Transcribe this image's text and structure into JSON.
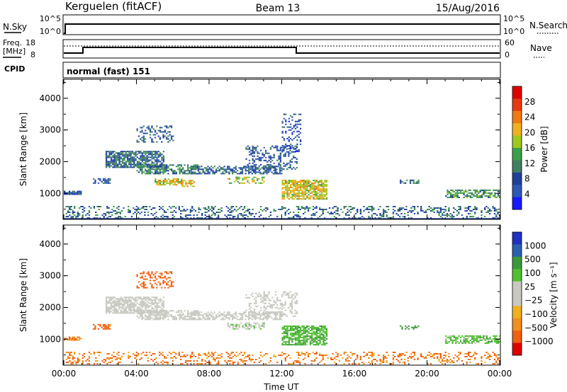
{
  "header": {
    "station": "Kerguelen (fitACF)",
    "beam": "Beam 13",
    "date": "15/Aug/2016"
  },
  "top_panels": {
    "nsky": {
      "label": "N.Sky",
      "ticks": [
        "10^5",
        "10^0"
      ],
      "right_label": "N.Search",
      "right_ticks": [
        "10^5",
        "10^0"
      ]
    },
    "freq": {
      "label_top": "Freq.",
      "label_unit": "[MHz]",
      "ticks": [
        "18",
        "8"
      ],
      "right_label": "Nave",
      "right_ticks": [
        "60",
        "0"
      ]
    },
    "cpid": {
      "label": "CPID",
      "value": "normal (fast) 151"
    }
  },
  "colors": {
    "power_scale": [
      "#1a1aff",
      "#2e58b8",
      "#1f3f9a",
      "#3f7f5f",
      "#3ca04a",
      "#9ec81e",
      "#f0b020",
      "#f07a10",
      "#e83a10",
      "#e00000"
    ],
    "velocity_scale": [
      "#e00000",
      "#f06010",
      "#f09020",
      "#f0b020",
      "#c8c8c0",
      "#c8c8c0",
      "#50c030",
      "#3a9a3a",
      "#2a60b0",
      "#2030c0"
    ]
  },
  "chart_data": [
    {
      "type": "heatmap",
      "title": "",
      "xlabel": "",
      "ylabel": "Slant Range [km]",
      "x_ticks": [
        "00:00",
        "04:00",
        "08:00",
        "12:00",
        "16:00",
        "20:00",
        "00:00"
      ],
      "y_ticks": [
        "1000",
        "2000",
        "3000",
        "4000"
      ],
      "xlim_hours": [
        0,
        24
      ],
      "ylim_km": [
        180,
        4600
      ],
      "colorbar": {
        "label": "Power [dB]",
        "ticks": [
          "4",
          "8",
          "12",
          "16",
          "20",
          "24",
          "28"
        ],
        "range": [
          0,
          30
        ]
      },
      "regions": [
        {
          "t0": 0.1,
          "t1": 24.0,
          "r0": 200,
          "r1": 600,
          "value": 9,
          "density": 0.28
        },
        {
          "t0": 0.0,
          "t1": 0.9,
          "r0": 950,
          "r1": 1080,
          "value": 6,
          "density": 0.7
        },
        {
          "t0": 1.6,
          "t1": 2.5,
          "r0": 1300,
          "r1": 1450,
          "value": 7,
          "density": 0.6
        },
        {
          "t0": 2.3,
          "t1": 5.5,
          "r0": 1800,
          "r1": 2300,
          "value": 9,
          "density": 0.75
        },
        {
          "t0": 4.0,
          "t1": 7.5,
          "r0": 1600,
          "r1": 1900,
          "value": 11,
          "density": 0.65
        },
        {
          "t0": 4.0,
          "t1": 6.0,
          "r0": 2600,
          "r1": 3100,
          "value": 8,
          "density": 0.3
        },
        {
          "t0": 7.0,
          "t1": 12.0,
          "r0": 1600,
          "r1": 1850,
          "value": 8,
          "density": 0.6
        },
        {
          "t0": 5.0,
          "t1": 6.5,
          "r0": 1250,
          "r1": 1450,
          "value": 18,
          "density": 0.65
        },
        {
          "t0": 6.5,
          "t1": 7.2,
          "r0": 1200,
          "r1": 1400,
          "value": 20,
          "density": 0.6
        },
        {
          "t0": 9.0,
          "t1": 11.0,
          "r0": 1300,
          "r1": 1500,
          "value": 16,
          "density": 0.5
        },
        {
          "t0": 10.0,
          "t1": 12.8,
          "r0": 1700,
          "r1": 2500,
          "value": 7,
          "density": 0.35
        },
        {
          "t0": 12.0,
          "t1": 13.0,
          "r0": 2300,
          "r1": 3500,
          "value": 6,
          "density": 0.25
        },
        {
          "t0": 12.0,
          "t1": 14.5,
          "r0": 800,
          "r1": 1400,
          "value": 18,
          "density": 0.75
        },
        {
          "t0": 18.5,
          "t1": 19.5,
          "r0": 1300,
          "r1": 1400,
          "value": 10,
          "density": 0.5
        },
        {
          "t0": 21.0,
          "t1": 24.0,
          "r0": 850,
          "r1": 1100,
          "value": 12,
          "density": 0.6
        }
      ]
    },
    {
      "type": "heatmap",
      "title": "",
      "xlabel": "Time UT",
      "ylabel": "Slant Range [km]",
      "x_ticks": [
        "00:00",
        "04:00",
        "08:00",
        "12:00",
        "16:00",
        "20:00",
        "00:00"
      ],
      "y_ticks": [
        "1000",
        "2000",
        "3000",
        "4000"
      ],
      "xlim_hours": [
        0,
        24
      ],
      "ylim_km": [
        180,
        4600
      ],
      "colorbar": {
        "label": "Velocity [m s⁻¹]",
        "ticks": [
          "1000",
          "500",
          "100",
          "25",
          "−25",
          "−100",
          "−500",
          "−1000"
        ],
        "range": [
          -1000,
          1000
        ]
      },
      "regions": [
        {
          "t0": 0.1,
          "t1": 24.0,
          "r0": 200,
          "r1": 600,
          "value": -100,
          "density": 0.25
        },
        {
          "t0": 0.0,
          "t1": 0.9,
          "r0": 950,
          "r1": 1080,
          "value": -100,
          "density": 0.6
        },
        {
          "t0": 1.6,
          "t1": 2.5,
          "r0": 1300,
          "r1": 1450,
          "value": -150,
          "density": 0.6
        },
        {
          "t0": 2.3,
          "t1": 5.5,
          "r0": 1800,
          "r1": 2300,
          "value": 0,
          "density": 0.7
        },
        {
          "t0": 4.0,
          "t1": 7.5,
          "r0": 1600,
          "r1": 1900,
          "value": 0,
          "density": 0.65
        },
        {
          "t0": 4.0,
          "t1": 6.0,
          "r0": 2600,
          "r1": 3100,
          "value": -400,
          "density": 0.35
        },
        {
          "t0": 7.0,
          "t1": 12.0,
          "r0": 1600,
          "r1": 1850,
          "value": 0,
          "density": 0.6
        },
        {
          "t0": 9.0,
          "t1": 11.0,
          "r0": 1300,
          "r1": 1500,
          "value": 10,
          "density": 0.5
        },
        {
          "t0": 10.0,
          "t1": 12.8,
          "r0": 1700,
          "r1": 2500,
          "value": 0,
          "density": 0.35
        },
        {
          "t0": 12.0,
          "t1": 14.5,
          "r0": 800,
          "r1": 1400,
          "value": 80,
          "density": 0.75
        },
        {
          "t0": 18.5,
          "t1": 19.5,
          "r0": 1300,
          "r1": 1400,
          "value": 200,
          "density": 0.5
        },
        {
          "t0": 21.0,
          "t1": 24.0,
          "r0": 850,
          "r1": 1100,
          "value": 60,
          "density": 0.6
        }
      ]
    }
  ]
}
